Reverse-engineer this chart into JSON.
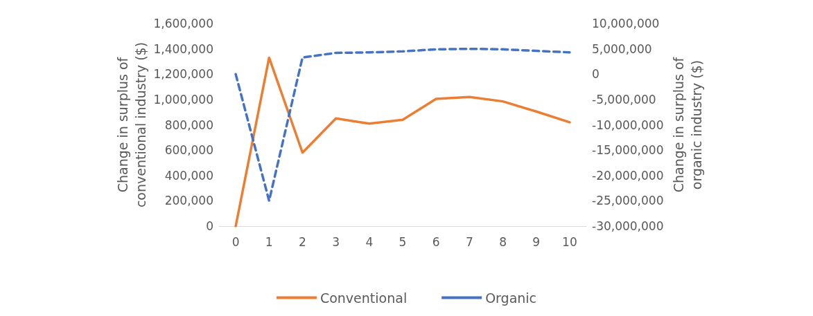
{
  "chart_data": {
    "type": "line",
    "ylabel": "Change in surplus of\nconventional industry ($)",
    "y2label": "Change in surplus of\norganic industry ($)",
    "categories": [
      "0",
      "1",
      "2",
      "3",
      "4",
      "5",
      "6",
      "7",
      "8",
      "9",
      "10"
    ],
    "series": [
      {
        "name": "Conventional",
        "color": "#ed7d31",
        "line_style": "solid",
        "values": [
          0,
          1330000,
          580000,
          850000,
          810000,
          840000,
          1005000,
          1020000,
          985000,
          905000,
          820000
        ]
      },
      {
        "name": "Organic",
        "color": "#4472c4",
        "line_style": "dashed",
        "axis": "y2",
        "values": [
          0,
          -25000000,
          3300000,
          4200000,
          4300000,
          4500000,
          4900000,
          5000000,
          4900000,
          4600000,
          4300000
        ]
      }
    ],
    "ylim": [
      0,
      1600000
    ],
    "yticks": [
      0,
      {
        "value": 200000,
        "label": "200,000"
      },
      {
        "value": 400000,
        "label": "400,000"
      },
      {
        "value": 600000,
        "label": "600,000"
      },
      {
        "value": 800000,
        "label": "800,000"
      },
      {
        "value": 1000000,
        "label": "1,000,000"
      },
      {
        "value": 1200000,
        "label": "1,200,000"
      },
      {
        "value": 1400000,
        "label": "1,400,000"
      },
      {
        "value": 1600000,
        "label": "1,600,000"
      }
    ],
    "y2lim": [
      -30000000,
      10000000
    ],
    "y2ticks": [
      {
        "value": -30000000,
        "label": "-30,000,000"
      },
      {
        "value": -25000000,
        "label": "-25,000,000"
      },
      {
        "value": -20000000,
        "label": "-20,000,000"
      },
      {
        "value": -15000000,
        "label": "-15,000,000"
      },
      {
        "value": -10000000,
        "label": "-10,000,000"
      },
      {
        "value": -5000000,
        "label": "-5,000,000"
      },
      0,
      {
        "value": 5000000,
        "label": "5,000,000"
      },
      {
        "value": 10000000,
        "label": "10,000,000"
      }
    ],
    "grid": false,
    "legend": "bottom",
    "marker": "none"
  }
}
